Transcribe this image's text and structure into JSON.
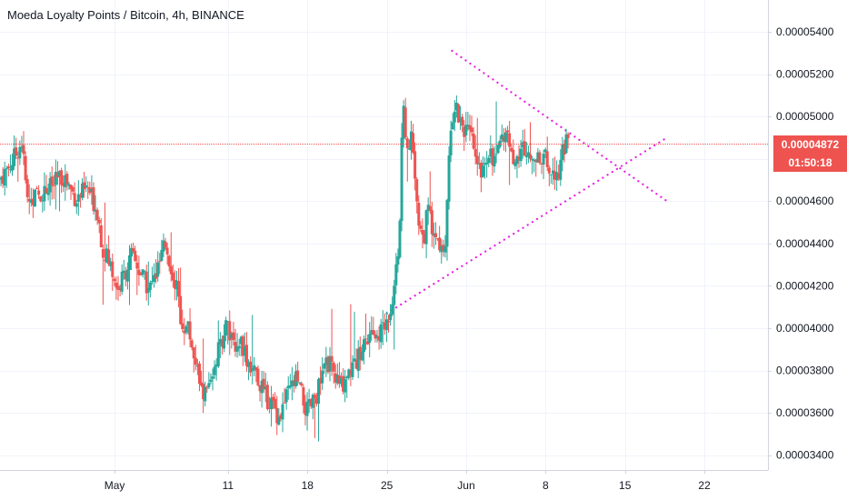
{
  "title": "Moeda Loyalty Points / Bitcoin, 4h, BINANCE",
  "colors": {
    "up": "#26a69a",
    "down": "#ef5350",
    "grid": "#f0f3fa",
    "trendline": "#e91ee3",
    "price_line": "#ef5350",
    "axis_border": "#d1d4dc"
  },
  "price_tag": {
    "value": "0.00004872",
    "countdown": "01:50:18",
    "price": 4.872e-05
  },
  "chart_data": {
    "type": "candlestick",
    "symbol": "Moeda Loyalty Points / Bitcoin",
    "interval": "4h",
    "exchange": "BINANCE",
    "y_ticks": [
      3.4e-05,
      3.6e-05,
      3.8e-05,
      4e-05,
      4.2e-05,
      4.4e-05,
      4.6e-05,
      4.8e-05,
      5e-05,
      5.2e-05,
      5.4e-05
    ],
    "y_tick_labels": [
      "0.00003400",
      "0.00003600",
      "0.00003800",
      "0.00004000",
      "0.00004200",
      "0.00004400",
      "0.00004600",
      "",
      "0.00005000",
      "0.00005200",
      "0.00005400"
    ],
    "ylim": [
      3.33e-05,
      5.55e-05
    ],
    "x_labels": [
      {
        "label": "May",
        "day": 0
      },
      {
        "label": "11",
        "day": 10
      },
      {
        "label": "18",
        "day": 17
      },
      {
        "label": "25",
        "day": 24
      },
      {
        "label": "Jun",
        "day": 31
      },
      {
        "label": "8",
        "day": 38
      },
      {
        "label": "15",
        "day": 45
      },
      {
        "label": "22",
        "day": 52
      }
    ],
    "xlim_days": [
      -10.1,
      57.6
    ],
    "trendlines": [
      {
        "name": "upper",
        "from": [
          29.75,
          5.31e-05
        ],
        "to": [
          48.7,
          4.6e-05
        ],
        "style": "dotted"
      },
      {
        "name": "lower",
        "from": [
          24.0,
          4.07e-05
        ],
        "to": [
          48.7,
          4.9e-05
        ],
        "style": "dotted"
      }
    ],
    "anchors": [
      [
        -10.1,
        4.7e-05
      ],
      [
        -9,
        4.78e-05
      ],
      [
        -8.1,
        4.88e-05
      ],
      [
        -7.6,
        4.6e-05
      ],
      [
        -6,
        4.65e-05
      ],
      [
        -4.4,
        4.72e-05
      ],
      [
        -3.3,
        4.61e-05
      ],
      [
        -2.3,
        4.66e-05
      ],
      [
        -1.4,
        4.55e-05
      ],
      [
        -1.0,
        4.38e-05
      ],
      [
        -0.3,
        4.3e-05
      ],
      [
        0.4,
        4.18e-05
      ],
      [
        0.8,
        4.24e-05
      ],
      [
        1.6,
        4.34e-05
      ],
      [
        2.4,
        4.26e-05
      ],
      [
        3.1,
        4.18e-05
      ],
      [
        3.8,
        4.26e-05
      ],
      [
        4.6,
        4.4e-05
      ],
      [
        5.6,
        4.18e-05
      ],
      [
        6.0,
        4.02e-05
      ],
      [
        6.6,
        4e-05
      ],
      [
        7.3,
        3.82e-05
      ],
      [
        7.8,
        3.68e-05
      ],
      [
        8.4,
        3.72e-05
      ],
      [
        9.0,
        3.85e-05
      ],
      [
        9.4,
        3.92e-05
      ],
      [
        10.0,
        4.04e-05
      ],
      [
        10.5,
        3.9e-05
      ],
      [
        11.2,
        3.95e-05
      ],
      [
        11.8,
        3.85e-05
      ],
      [
        12.6,
        3.78e-05
      ],
      [
        13.3,
        3.68e-05
      ],
      [
        14.0,
        3.64e-05
      ],
      [
        14.6,
        3.58e-05
      ],
      [
        15.3,
        3.68e-05
      ],
      [
        16.1,
        3.76e-05
      ],
      [
        16.7,
        3.66e-05
      ],
      [
        17.0,
        3.6e-05
      ],
      [
        17.6,
        3.65e-05
      ],
      [
        18.3,
        3.75e-05
      ],
      [
        18.8,
        3.85e-05
      ],
      [
        19.4,
        3.78e-05
      ],
      [
        20.0,
        3.72e-05
      ],
      [
        20.6,
        3.79e-05
      ],
      [
        21.4,
        3.84e-05
      ],
      [
        22.1,
        3.93e-05
      ],
      [
        22.8,
        3.95e-05
      ],
      [
        23.4,
        3.98e-05
      ],
      [
        24.0,
        4.01e-05
      ],
      [
        24.5,
        4.12e-05
      ],
      [
        24.9,
        4.3e-05
      ],
      [
        25.2,
        4.44e-05
      ],
      [
        25.5,
        5.06e-05
      ],
      [
        25.8,
        4.85e-05
      ],
      [
        26.2,
        4.92e-05
      ],
      [
        26.5,
        4.72e-05
      ],
      [
        26.9,
        4.52e-05
      ],
      [
        27.3,
        4.41e-05
      ],
      [
        27.7,
        4.56e-05
      ],
      [
        28.1,
        4.48e-05
      ],
      [
        28.5,
        4.41e-05
      ],
      [
        28.9,
        4.36e-05
      ],
      [
        29.3,
        4.42e-05
      ],
      [
        29.7,
        4.97e-05
      ],
      [
        30.1,
        5.06e-05
      ],
      [
        30.6,
        4.98e-05
      ],
      [
        31.2,
        4.92e-05
      ],
      [
        31.7,
        4.87e-05
      ],
      [
        32.1,
        4.72e-05
      ],
      [
        32.6,
        4.78e-05
      ],
      [
        33.1,
        4.85e-05
      ],
      [
        33.7,
        4.78e-05
      ],
      [
        34.2,
        4.88e-05
      ],
      [
        34.6,
        4.94e-05
      ],
      [
        35.1,
        4.82e-05
      ],
      [
        35.5,
        4.78e-05
      ],
      [
        36.0,
        4.86e-05
      ],
      [
        36.5,
        4.8e-05
      ],
      [
        37.0,
        4.85e-05
      ],
      [
        37.5,
        4.77e-05
      ],
      [
        38.0,
        4.81e-05
      ],
      [
        38.4,
        4.74e-05
      ],
      [
        38.8,
        4.76e-05
      ],
      [
        39.2,
        4.72e-05
      ],
      [
        39.6,
        4.86e-05
      ],
      [
        40.0,
        4.87e-05
      ]
    ]
  }
}
